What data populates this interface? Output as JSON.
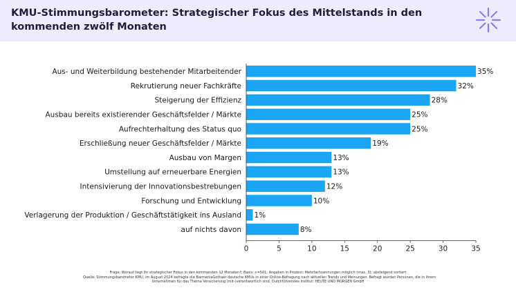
{
  "header": {
    "title": "KMU-Stimmungsbarometer: Strategischer Fokus des Mittelstands in den kommenden zwölf Monaten",
    "logo_icon": "asterisk-burst-icon",
    "accent_color": "#8c7cf0",
    "background_color": "#eeebfb"
  },
  "chart_data": {
    "type": "bar",
    "orientation": "horizontal",
    "categories": [
      "Aus- und Weiterbildung bestehender Mitarbeitender",
      "Rekrutierung neuer Fachkräfte",
      "Steigerung der Effizienz",
      "Ausbau bereits existierender Geschäftsfelder / Märkte",
      "Aufrechterhaltung des Status quo",
      "Erschließung neuer Geschäftsfelder / Märkte",
      "Ausbau von Margen",
      "Umstellung auf erneuerbare Energien",
      "Intensivierung der Innovationsbestrebungen",
      "Forschung und Entwicklung",
      "Verlagerung der Produktion / Geschäftstätigkeit ins Ausland",
      "auf nichts davon"
    ],
    "values": [
      35,
      32,
      28,
      25,
      25,
      19,
      13,
      13,
      12,
      10,
      1,
      8
    ],
    "value_labels": [
      "35%",
      "32%",
      "28%",
      "25%",
      "25%",
      "19%",
      "13%",
      "13%",
      "12%",
      "10%",
      "1%",
      "8%"
    ],
    "xlim": [
      0,
      35
    ],
    "xticks": [
      "0",
      "5",
      "10",
      "15",
      "20",
      "25",
      "30",
      "35"
    ],
    "bar_color": "#1aa5f5",
    "grid": false,
    "xlabel": "",
    "ylabel": ""
  },
  "footnote": {
    "line1": "Frage: Worauf liegt Ihr strategischer Fokus in den kommenden 12 Monaten?; Basis: n=501; Angaben in Prozent; Mehrfachnennungen möglich (max. 3); absteigend sortiert",
    "line2": "Quelle: Stimmungsbarometer KMU, im August 2024 befragte die BarmeniaGothaer deutsche KMUs in einer Online-Befragung nach aktuellen Trends und Meinungen. Befragt wurden Personen, die in ihrem",
    "line3": "Unternehmen für das Thema Versicherung (mit-)verantwortlich sind. Durchführendes Institut: HEUTE UND MORGEN GmbH"
  }
}
